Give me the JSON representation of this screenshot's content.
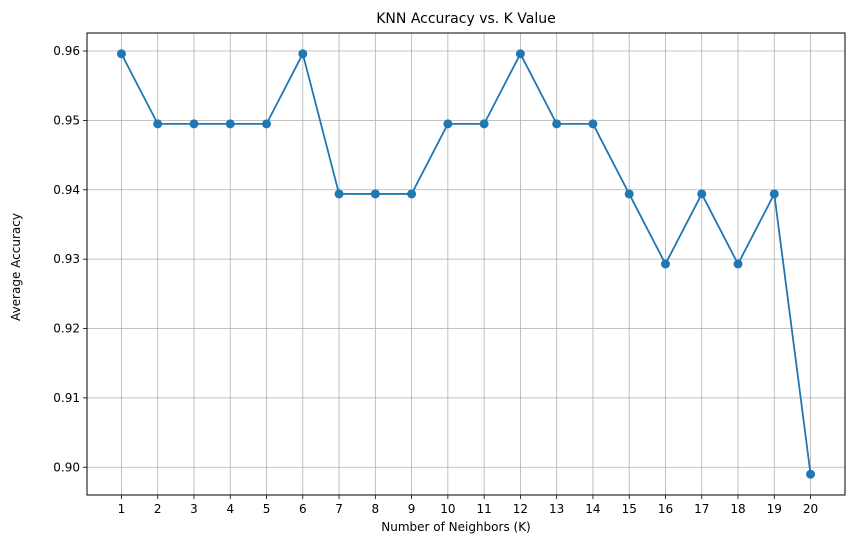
{
  "chart_data": {
    "type": "line",
    "title": "KNN Accuracy vs. K Value",
    "xlabel": "Number of Neighbors (K)",
    "ylabel": "Average Accuracy",
    "x": [
      1,
      2,
      3,
      4,
      5,
      6,
      7,
      8,
      9,
      10,
      11,
      12,
      13,
      14,
      15,
      16,
      17,
      18,
      19,
      20
    ],
    "series": [
      {
        "values": [
          0.9596,
          0.9495,
          0.9495,
          0.9495,
          0.9495,
          0.9596,
          0.9394,
          0.9394,
          0.9394,
          0.9495,
          0.9495,
          0.9596,
          0.9495,
          0.9495,
          0.9394,
          0.9293,
          0.9394,
          0.9293,
          0.9394,
          0.899
        ],
        "color": "#1f77b4",
        "marker": "circle"
      }
    ],
    "xticks": [
      "1",
      "2",
      "3",
      "4",
      "5",
      "6",
      "7",
      "8",
      "9",
      "10",
      "11",
      "12",
      "13",
      "14",
      "15",
      "16",
      "17",
      "18",
      "19",
      "20"
    ],
    "yticks": [
      "0.90",
      "0.91",
      "0.92",
      "0.93",
      "0.94",
      "0.95",
      "0.96"
    ],
    "xlim": [
      0.05,
      20.95
    ],
    "ylim": [
      0.896,
      0.9626
    ],
    "grid": true,
    "legend": false
  }
}
